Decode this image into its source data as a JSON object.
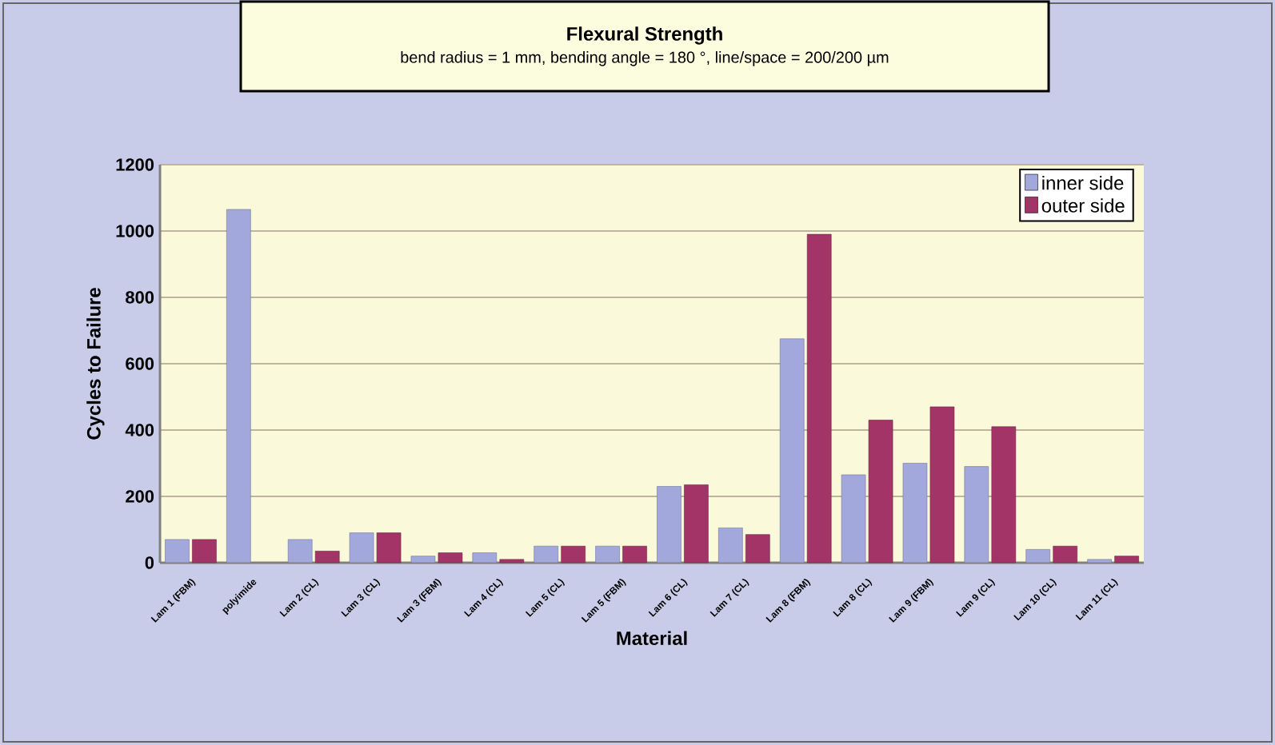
{
  "chart_data": {
    "type": "bar",
    "title": "Flexural Strength",
    "subtitle": "bend radius = 1 mm, bending angle = 180 °, line/space = 200/200 µm",
    "xlabel": "Material",
    "ylabel": "Cycles to Failure",
    "categories": [
      "Lam 1 (FBM)",
      "polyimide",
      "Lam 2 (CL)",
      "Lam 3 (CL)",
      "Lam 3 (FBM)",
      "Lam 4 (CL)",
      "Lam 5 (CL)",
      "Lam 5 (FBM)",
      "Lam 6 (CL)",
      "Lam 7 (CL)",
      "Lam 8 (FBM)",
      "Lam 8 (CL)",
      "Lam 9 (FBM)",
      "Lam 9 (CL)",
      "Lam 10 (CL)",
      "Lam 11 (CL)"
    ],
    "series": [
      {
        "name": "inner side",
        "color": "#a3a8dc",
        "values": [
          70,
          1065,
          70,
          90,
          20,
          30,
          50,
          50,
          230,
          105,
          675,
          265,
          300,
          290,
          40,
          10
        ]
      },
      {
        "name": "outer side",
        "color": "#a33468",
        "values": [
          70,
          null,
          35,
          90,
          30,
          10,
          50,
          50,
          235,
          85,
          990,
          430,
          470,
          410,
          50,
          20
        ]
      }
    ],
    "ylim": [
      0,
      1200
    ],
    "yticks": [
      0,
      200,
      400,
      600,
      800,
      1000,
      1200
    ],
    "grid": "y",
    "legend": "top right"
  }
}
